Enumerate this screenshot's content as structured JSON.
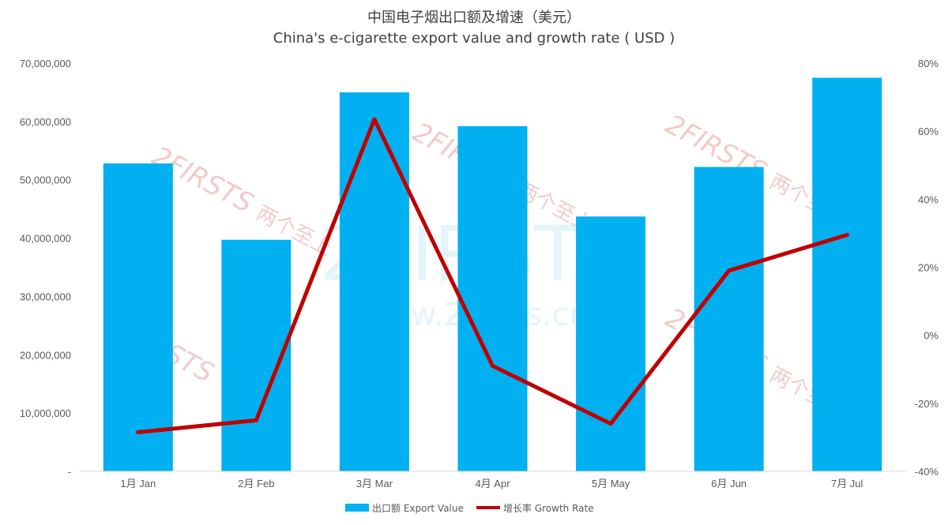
{
  "chart_data": {
    "type": "bar",
    "title": "中国电子烟出口额及增速（美元）",
    "subtitle": "China's e-cigarette export value and growth rate ( USD )",
    "categories": [
      "1月 Jan",
      "2月 Feb",
      "3月 Mar",
      "4月 Apr",
      "5月 May",
      "6月 Jun",
      "7月 Jul"
    ],
    "series": [
      {
        "name": "出口额 Export Value",
        "type": "bar",
        "axis": "left",
        "color": "#00B0F0",
        "values": [
          52800000,
          39700000,
          65000000,
          59200000,
          43700000,
          52200000,
          67500000
        ]
      },
      {
        "name": "增长率 Growth Rate",
        "type": "line",
        "axis": "right",
        "color": "#C00000",
        "values": [
          -28.5,
          -25,
          63.5,
          -9,
          -26,
          19,
          29.5
        ],
        "unit": "%"
      }
    ],
    "y_left": {
      "ylim": [
        0,
        70000000
      ],
      "tick_labels": [
        "-",
        "10,000,000",
        "20,000,000",
        "30,000,000",
        "40,000,000",
        "50,000,000",
        "60,000,000",
        "70,000,000"
      ]
    },
    "y_right": {
      "ylim": [
        -40,
        80
      ],
      "tick_labels": [
        "-40%",
        "-20%",
        "0%",
        "20%",
        "40%",
        "60%",
        "80%"
      ]
    },
    "grid": false,
    "legend_position": "bottom"
  },
  "watermark": {
    "brand": "2FIRSTS",
    "brand_cn": "两个至上",
    "url": "www.2firsts.cn",
    "color": "#E8A0A0"
  }
}
